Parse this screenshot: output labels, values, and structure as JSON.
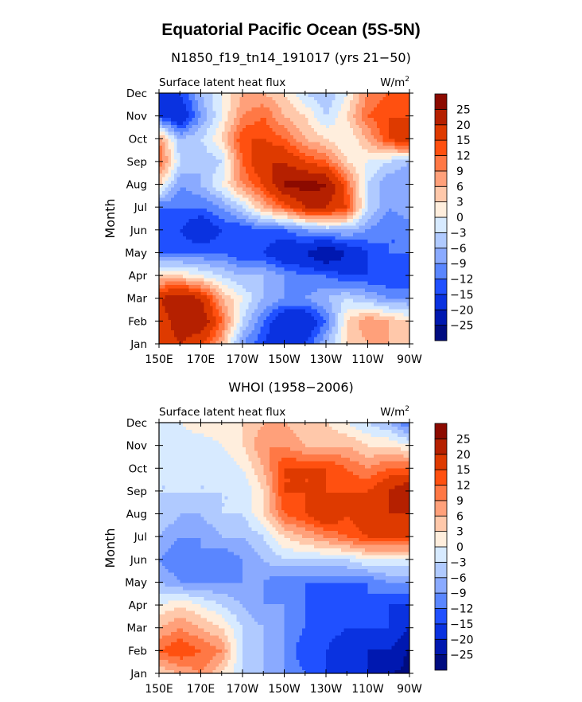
{
  "title": "Equatorial Pacific Ocean (5S-5N)",
  "colors": [
    "#000c80",
    "#0018b0",
    "#0a32e0",
    "#2050ff",
    "#5a86ff",
    "#8aaaff",
    "#b0caff",
    "#d7eaff",
    "#ffeedd",
    "#ffc8aa",
    "#ffa07a",
    "#ff7845",
    "#ff5010",
    "#de3a00",
    "#b52000",
    "#8c0a00"
  ],
  "chart_data": [
    {
      "type": "heatmap",
      "title": "N1850_f19_tn14_191017 (yrs 21−50)",
      "left_label": "Surface latent heat flux",
      "units": "W/m",
      "units_sup": "2",
      "ylabel": "Month",
      "x": [
        "150E",
        "160E",
        "170E",
        "180",
        "170W",
        "160W",
        "150W",
        "140W",
        "130W",
        "120W",
        "110W",
        "100W",
        "90W"
      ],
      "xticklabels": [
        "150E",
        "170E",
        "170W",
        "150W",
        "130W",
        "110W",
        "90W"
      ],
      "y": [
        "Jan",
        "Feb",
        "Mar",
        "Apr",
        "May",
        "Jun",
        "Jul",
        "Aug",
        "Sep",
        "Oct",
        "Nov",
        "Dec"
      ],
      "levels": [
        -25,
        -20,
        -15,
        -12,
        -9,
        -6,
        -3,
        0,
        3,
        6,
        9,
        12,
        15,
        20,
        25
      ],
      "values": [
        [
          15,
          20,
          15,
          6,
          -9,
          -15,
          -20,
          -15,
          -6,
          3,
          6,
          6,
          3
        ],
        [
          15,
          25,
          25,
          12,
          -3,
          -12,
          -20,
          -20,
          -12,
          3,
          9,
          6,
          3
        ],
        [
          20,
          25,
          20,
          6,
          0,
          -6,
          -9,
          -9,
          -6,
          -3,
          -6,
          -9,
          -9
        ],
        [
          3,
          3,
          0,
          -3,
          -6,
          -6,
          -9,
          -12,
          -12,
          -15,
          -15,
          -15,
          -15
        ],
        [
          -12,
          -12,
          -12,
          -12,
          -15,
          -15,
          -20,
          -20,
          -26,
          -20,
          -15,
          -12,
          -12
        ],
        [
          -15,
          -15,
          -20,
          -15,
          -15,
          -12,
          -12,
          -9,
          -6,
          -6,
          -9,
          -12,
          -12
        ],
        [
          -12,
          -12,
          -12,
          -9,
          -3,
          6,
          12,
          20,
          20,
          15,
          -3,
          -9,
          -6
        ],
        [
          3,
          -9,
          -6,
          0,
          9,
          15,
          26,
          27,
          26,
          12,
          -3,
          -9,
          -9
        ],
        [
          12,
          -3,
          -6,
          -3,
          12,
          20,
          20,
          15,
          12,
          3,
          0,
          -3,
          -6
        ],
        [
          9,
          -6,
          -3,
          3,
          15,
          15,
          12,
          6,
          3,
          0,
          6,
          15,
          20
        ],
        [
          -15,
          -20,
          -9,
          0,
          9,
          12,
          6,
          3,
          -3,
          3,
          12,
          15,
          15
        ],
        [
          -15,
          -15,
          -6,
          0,
          6,
          6,
          3,
          -3,
          -6,
          0,
          9,
          12,
          12
        ]
      ]
    },
    {
      "type": "heatmap",
      "title": "WHOI (1958−2006)",
      "left_label": "Surface latent heat flux",
      "units": "W/m",
      "units_sup": "2",
      "ylabel": "Month",
      "x": [
        "150E",
        "160E",
        "170E",
        "180",
        "170W",
        "160W",
        "150W",
        "140W",
        "130W",
        "120W",
        "110W",
        "100W",
        "90W"
      ],
      "xticklabels": [
        "150E",
        "170E",
        "170W",
        "150W",
        "130W",
        "110W",
        "90W"
      ],
      "y": [
        "Jan",
        "Feb",
        "Mar",
        "Apr",
        "May",
        "Jun",
        "Jul",
        "Aug",
        "Sep",
        "Oct",
        "Nov",
        "Dec"
      ],
      "levels": [
        -25,
        -20,
        -15,
        -12,
        -9,
        -6,
        -3,
        0,
        3,
        6,
        9,
        12,
        15,
        20,
        25
      ],
      "values": [
        [
          3,
          6,
          9,
          3,
          -3,
          -6,
          -9,
          -12,
          -15,
          -15,
          -20,
          -25,
          -26
        ],
        [
          12,
          15,
          12,
          9,
          -3,
          -6,
          -9,
          -15,
          -15,
          -20,
          -20,
          -20,
          -26
        ],
        [
          6,
          9,
          6,
          3,
          -3,
          -6,
          -9,
          -12,
          -12,
          -15,
          -15,
          -15,
          -20
        ],
        [
          0,
          3,
          0,
          -3,
          -6,
          -9,
          -9,
          -12,
          -15,
          -15,
          -12,
          -15,
          -15
        ],
        [
          -6,
          -9,
          -9,
          -9,
          -9,
          -9,
          -12,
          -12,
          -12,
          -12,
          -12,
          -9,
          -9
        ],
        [
          -9,
          -12,
          -9,
          -12,
          -9,
          -6,
          -3,
          -3,
          -3,
          -3,
          0,
          0,
          0
        ],
        [
          -6,
          -9,
          -9,
          -6,
          -6,
          -3,
          3,
          6,
          9,
          12,
          15,
          15,
          15
        ],
        [
          -3,
          -6,
          -6,
          -3,
          -3,
          3,
          12,
          15,
          20,
          15,
          20,
          20,
          20
        ],
        [
          -3,
          -3,
          -3,
          -3,
          -3,
          3,
          15,
          15,
          15,
          15,
          15,
          20,
          25
        ],
        [
          -3,
          -3,
          -3,
          -3,
          0,
          6,
          15,
          15,
          15,
          12,
          9,
          12,
          12
        ],
        [
          -3,
          -3,
          -3,
          0,
          3,
          9,
          9,
          6,
          6,
          6,
          3,
          3,
          0
        ],
        [
          0,
          0,
          3,
          3,
          3,
          6,
          6,
          3,
          3,
          0,
          -3,
          -6,
          -12
        ]
      ]
    }
  ]
}
